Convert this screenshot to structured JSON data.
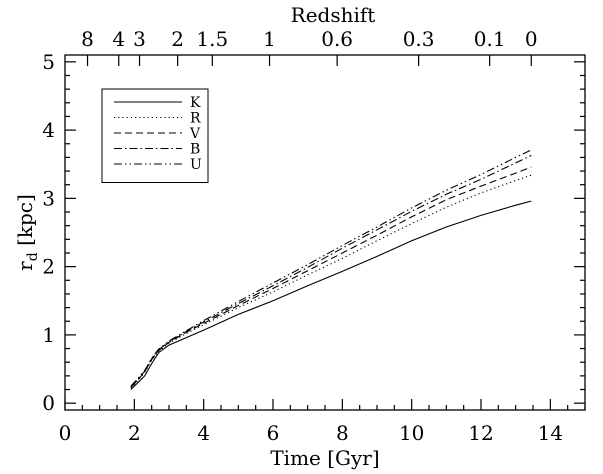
{
  "chart_data": {
    "type": "line",
    "xlabel": "Time [Gyr]",
    "ylabel": "r_d [kpc]",
    "top_axis_label": "Redshift",
    "xlim": [
      0,
      15
    ],
    "ylim": [
      -0.1,
      5.1
    ],
    "x_ticks": [
      0,
      2,
      4,
      6,
      8,
      10,
      12,
      14
    ],
    "y_ticks": [
      0,
      1,
      2,
      3,
      4,
      5
    ],
    "top_ticks": [
      {
        "label": "8",
        "t": 0.65
      },
      {
        "label": "4",
        "t": 1.55
      },
      {
        "label": "3",
        "t": 2.15
      },
      {
        "label": "2",
        "t": 3.25
      },
      {
        "label": "1.5",
        "t": 4.25
      },
      {
        "label": "1",
        "t": 5.9
      },
      {
        "label": "0.6",
        "t": 7.85
      },
      {
        "label": "0.3",
        "t": 10.2
      },
      {
        "label": "0.1",
        "t": 12.25
      },
      {
        "label": "0",
        "t": 13.45
      }
    ],
    "legend_position": "top-left",
    "series": [
      {
        "name": "K",
        "dash": "solid",
        "x": [
          1.9,
          2.1,
          2.3,
          2.5,
          2.7,
          3.0,
          3.5,
          4.0,
          5.0,
          6.0,
          7.0,
          8.0,
          9.0,
          10.0,
          11.0,
          12.0,
          13.0,
          13.45
        ],
        "values": [
          0.2,
          0.3,
          0.4,
          0.58,
          0.74,
          0.85,
          0.96,
          1.07,
          1.3,
          1.5,
          1.72,
          1.93,
          2.15,
          2.38,
          2.58,
          2.75,
          2.9,
          2.96
        ]
      },
      {
        "name": "R",
        "dash": "dotted",
        "x": [
          1.9,
          2.1,
          2.3,
          2.5,
          2.7,
          3.0,
          3.5,
          4.0,
          5.0,
          6.0,
          7.0,
          8.0,
          9.0,
          10.0,
          11.0,
          12.0,
          13.0,
          13.45
        ],
        "values": [
          0.22,
          0.33,
          0.45,
          0.63,
          0.76,
          0.88,
          1.02,
          1.15,
          1.4,
          1.63,
          1.88,
          2.12,
          2.38,
          2.63,
          2.87,
          3.08,
          3.26,
          3.34
        ]
      },
      {
        "name": "V",
        "dash": "dashed",
        "x": [
          1.9,
          2.1,
          2.3,
          2.5,
          2.7,
          3.0,
          3.5,
          4.0,
          5.0,
          6.0,
          7.0,
          8.0,
          9.0,
          10.0,
          11.0,
          12.0,
          13.0,
          13.45
        ],
        "values": [
          0.23,
          0.34,
          0.46,
          0.64,
          0.77,
          0.89,
          1.04,
          1.17,
          1.43,
          1.68,
          1.94,
          2.2,
          2.46,
          2.73,
          2.98,
          3.18,
          3.37,
          3.46
        ]
      },
      {
        "name": "B",
        "dash": "dashdot",
        "x": [
          1.9,
          2.1,
          2.3,
          2.5,
          2.7,
          3.0,
          3.5,
          4.0,
          5.0,
          6.0,
          7.0,
          8.0,
          9.0,
          10.0,
          11.0,
          12.0,
          13.0,
          13.45
        ],
        "values": [
          0.24,
          0.35,
          0.47,
          0.65,
          0.78,
          0.9,
          1.05,
          1.19,
          1.46,
          1.72,
          1.99,
          2.27,
          2.54,
          2.81,
          3.06,
          3.28,
          3.52,
          3.63
        ]
      },
      {
        "name": "U",
        "dash": "dashdotdot",
        "x": [
          1.9,
          2.1,
          2.3,
          2.5,
          2.7,
          3.0,
          3.5,
          4.0,
          5.0,
          6.0,
          7.0,
          8.0,
          9.0,
          10.0,
          11.0,
          12.0,
          13.0,
          13.45
        ],
        "values": [
          0.25,
          0.36,
          0.48,
          0.66,
          0.79,
          0.91,
          1.06,
          1.21,
          1.49,
          1.76,
          2.03,
          2.31,
          2.58,
          2.86,
          3.12,
          3.35,
          3.6,
          3.71
        ]
      }
    ]
  }
}
